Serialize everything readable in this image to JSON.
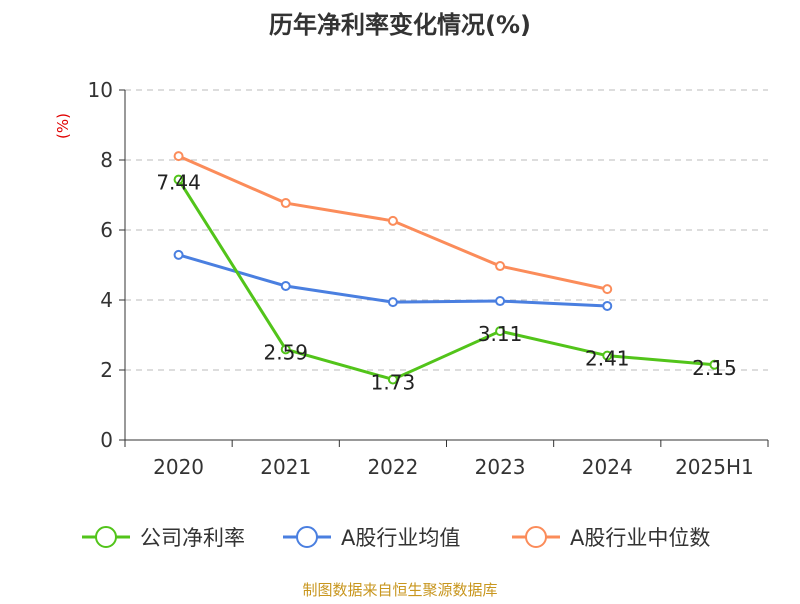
{
  "chart_data": {
    "type": "line",
    "title": "历年净利率变化情况(%)",
    "ylabel": "(%)",
    "xlabel": "",
    "categories": [
      "2020",
      "2021",
      "2022",
      "2023",
      "2024",
      "2025H1"
    ],
    "ylim": [
      0,
      10
    ],
    "yticks": [
      0,
      2,
      4,
      6,
      8,
      10
    ],
    "grid": true,
    "legend_position": "bottom",
    "series": [
      {
        "name": "公司净利率",
        "color": "#52c41a",
        "values": [
          7.44,
          2.59,
          1.73,
          3.11,
          2.41,
          2.15
        ],
        "labels": [
          "7.44",
          "2.59",
          "1.73",
          "3.11",
          "2.41",
          "2.15"
        ]
      },
      {
        "name": "A股行业均值",
        "color": "#4a7fe0",
        "values": [
          5.29,
          4.4,
          3.94,
          3.97,
          3.83,
          null
        ]
      },
      {
        "name": "A股行业中位数",
        "color": "#fb8c5a",
        "values": [
          8.11,
          6.77,
          6.26,
          4.97,
          4.31,
          null
        ]
      }
    ]
  },
  "footer": {
    "source": "制图数据来自恒生聚源数据库"
  }
}
